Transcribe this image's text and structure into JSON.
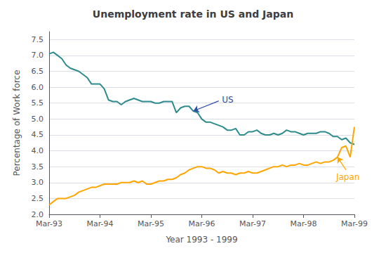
{
  "chart_data": {
    "type": "line",
    "title": "Unemployment rate in US and Japan",
    "xlabel": "Year 1993 - 1999",
    "ylabel": "Percentage of Work force",
    "categories": [
      "Mar-93",
      null,
      null,
      null,
      null,
      null,
      null,
      null,
      null,
      null,
      null,
      null,
      "Mar-94",
      null,
      null,
      null,
      null,
      null,
      null,
      null,
      null,
      null,
      null,
      null,
      "Mar-95",
      null,
      null,
      null,
      null,
      null,
      null,
      null,
      null,
      null,
      null,
      null,
      "Mar-96",
      null,
      null,
      null,
      null,
      null,
      null,
      null,
      null,
      null,
      null,
      null,
      "Mar-97",
      null,
      null,
      null,
      null,
      null,
      null,
      null,
      null,
      null,
      null,
      null,
      "Mar-98",
      null,
      null,
      null,
      null,
      null,
      null,
      null,
      null,
      null,
      null,
      null,
      "Mar-99"
    ],
    "series": [
      {
        "color": "#2E8B8B",
        "values": [
          7.05,
          7.1,
          7.0,
          6.9,
          6.7,
          6.6,
          6.55,
          6.5,
          6.4,
          6.3,
          6.1,
          6.1,
          6.1,
          5.95,
          5.6,
          5.55,
          5.55,
          5.45,
          5.55,
          5.6,
          5.65,
          5.6,
          5.55,
          5.55,
          5.55,
          5.5,
          5.5,
          5.55,
          5.55,
          5.55,
          5.2,
          5.35,
          5.4,
          5.4,
          5.25,
          5.2,
          5.0,
          4.9,
          4.9,
          4.85,
          4.8,
          4.75,
          4.65,
          4.65,
          4.7,
          4.5,
          4.5,
          4.6,
          4.6,
          4.65,
          4.55,
          4.5,
          4.5,
          4.55,
          4.5,
          4.55,
          4.65,
          4.6,
          4.6,
          4.55,
          4.5,
          4.55,
          4.55,
          4.55,
          4.6,
          4.6,
          4.55,
          4.45,
          4.45,
          4.35,
          4.4,
          4.25,
          4.2
        ]
      },
      {
        "color": "#FFA500",
        "values": [
          2.3,
          2.4,
          2.5,
          2.5,
          2.5,
          2.55,
          2.6,
          2.7,
          2.75,
          2.8,
          2.85,
          2.85,
          2.9,
          2.95,
          2.95,
          2.95,
          2.95,
          3.0,
          3.0,
          3.0,
          3.05,
          3.0,
          3.05,
          2.95,
          2.95,
          3.0,
          3.05,
          3.05,
          3.1,
          3.1,
          3.15,
          3.25,
          3.3,
          3.4,
          3.45,
          3.5,
          3.5,
          3.45,
          3.45,
          3.4,
          3.3,
          3.35,
          3.3,
          3.3,
          3.25,
          3.3,
          3.3,
          3.35,
          3.3,
          3.3,
          3.35,
          3.4,
          3.45,
          3.5,
          3.5,
          3.55,
          3.5,
          3.55,
          3.55,
          3.6,
          3.55,
          3.55,
          3.6,
          3.65,
          3.6,
          3.65,
          3.65,
          3.7,
          3.8,
          4.1,
          4.15,
          3.8,
          4.75
        ]
      }
    ],
    "ylim": [
      2.0,
      7.75
    ],
    "yticks": [
      {
        "value": 2,
        "label": "2.0"
      },
      2.5,
      {
        "value": 3,
        "label": "3.0"
      },
      3.5,
      {
        "value": 4,
        "label": "4.0"
      },
      4.5,
      {
        "value": 5,
        "label": "5.0"
      },
      5.5,
      {
        "value": 6,
        "label": "6.0"
      },
      6.5,
      {
        "value": 7,
        "label": "7.0"
      },
      7.5
    ],
    "grid": true,
    "annotations": [
      {
        "text": "US",
        "series": 0,
        "index": 34,
        "color": "#2B4FA0"
      },
      {
        "text": "Japan",
        "series": 1,
        "index": 68,
        "color": "#FFA500"
      }
    ]
  }
}
